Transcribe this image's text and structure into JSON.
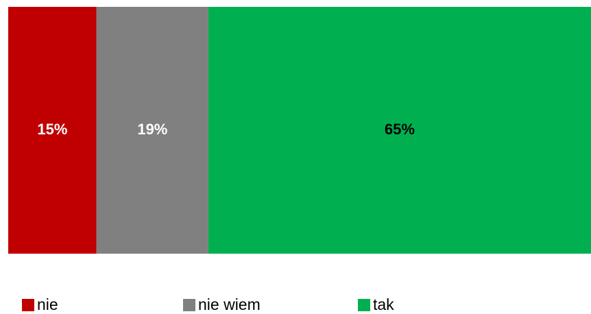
{
  "chart_data": {
    "type": "bar",
    "orientation": "horizontal",
    "stacked": true,
    "categories": [
      null
    ],
    "xlim": [
      0,
      99
    ],
    "series": [
      {
        "name": "nie",
        "color": "#c00000",
        "label_color": "#ffffff",
        "values": [
          15
        ],
        "value_labels": [
          "15%"
        ]
      },
      {
        "name": "nie wiem",
        "color": "#808080",
        "label_color": "#ffffff",
        "values": [
          19
        ],
        "value_labels": [
          "19%"
        ]
      },
      {
        "name": "tak",
        "color": "#00b050",
        "label_color": "#000000",
        "values": [
          65
        ],
        "value_labels": [
          "65%"
        ]
      }
    ],
    "legend": "bottom"
  }
}
